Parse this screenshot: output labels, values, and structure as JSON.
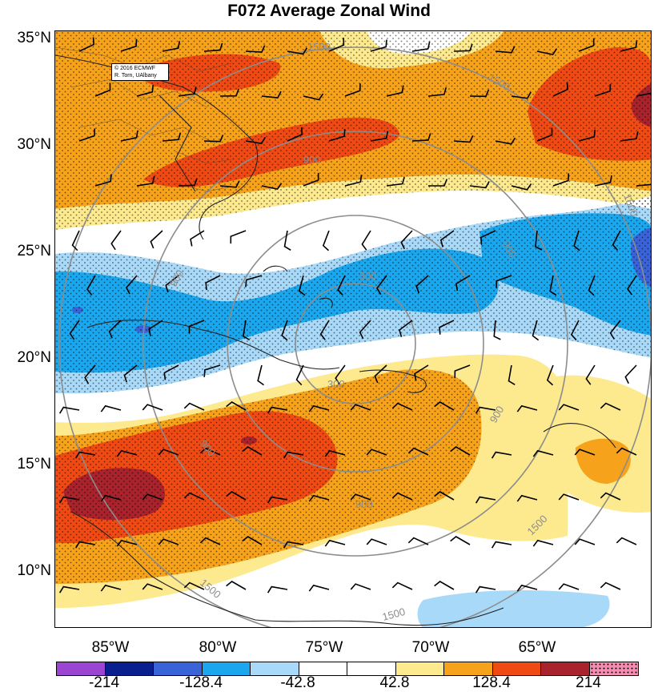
{
  "title": "F072 Average Zonal Wind",
  "credit": {
    "line1": "© 2016 ECMWF",
    "line2": "R. Torn, UAlbany"
  },
  "lat_labels": [
    "35°N",
    "30°N",
    "25°N",
    "20°N",
    "15°N",
    "10°N"
  ],
  "lon_labels": [
    "85°W",
    "80°W",
    "75°W",
    "70°W",
    "65°W"
  ],
  "colorbar": {
    "labels": [
      "-214",
      "-128.4",
      "-42.8",
      "42.8",
      "128.4",
      "214"
    ],
    "colors": [
      "#9b45d2",
      "#0a1f8f",
      "#3a63d8",
      "#1aa7ee",
      "#a9d9f8",
      "#ffffff",
      "#ffffff",
      "#fde98e",
      "#f7a21b",
      "#f04a14",
      "#a8232c",
      "#f48bb0"
    ]
  },
  "contour_labels": [
    "1500",
    "1500",
    "1500",
    "1500",
    "1500",
    "1500",
    "900",
    "900",
    "900",
    "900",
    "900",
    "900",
    "300",
    "300"
  ],
  "map_colors": {
    "strong_pos": "#f04a14",
    "very_strong_pos": "#a8232c",
    "mod_pos": "#f7a21b",
    "weak_pos": "#fde98e",
    "weak_neg": "#a9d9f8",
    "mod_neg": "#1aa7ee",
    "strong_neg": "#3a63d8",
    "very_strong_neg": "#9b45d2"
  }
}
